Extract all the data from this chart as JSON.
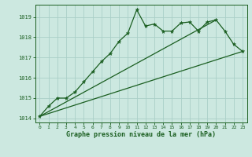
{
  "title": "Graphe pression niveau de la mer (hPa)",
  "background_color": "#cce8e0",
  "grid_color": "#aacfc8",
  "line_color": "#1a5e20",
  "xlim": [
    -0.5,
    23.5
  ],
  "ylim": [
    1013.8,
    1019.6
  ],
  "yticks": [
    1014,
    1015,
    1016,
    1017,
    1018,
    1019
  ],
  "xticks": [
    0,
    1,
    2,
    3,
    4,
    5,
    6,
    7,
    8,
    9,
    10,
    11,
    12,
    13,
    14,
    15,
    16,
    17,
    18,
    19,
    20,
    21,
    22,
    23
  ],
  "series1_x": [
    0,
    1,
    2,
    3,
    4,
    5,
    6,
    7,
    8,
    9,
    10,
    11,
    12,
    13,
    14,
    15,
    16,
    17,
    18,
    19,
    20,
    21,
    22,
    23
  ],
  "series1_y": [
    1014.1,
    1014.6,
    1015.0,
    1015.0,
    1015.3,
    1015.8,
    1016.3,
    1016.8,
    1017.2,
    1017.8,
    1018.2,
    1019.35,
    1018.55,
    1018.65,
    1018.3,
    1018.3,
    1018.7,
    1018.75,
    1018.3,
    1018.75,
    1018.85,
    1018.3,
    1017.65,
    1017.3
  ],
  "series2_x": [
    0,
    23
  ],
  "series2_y": [
    1014.1,
    1017.3
  ],
  "series3_x": [
    0,
    20
  ],
  "series3_y": [
    1014.1,
    1018.85
  ]
}
